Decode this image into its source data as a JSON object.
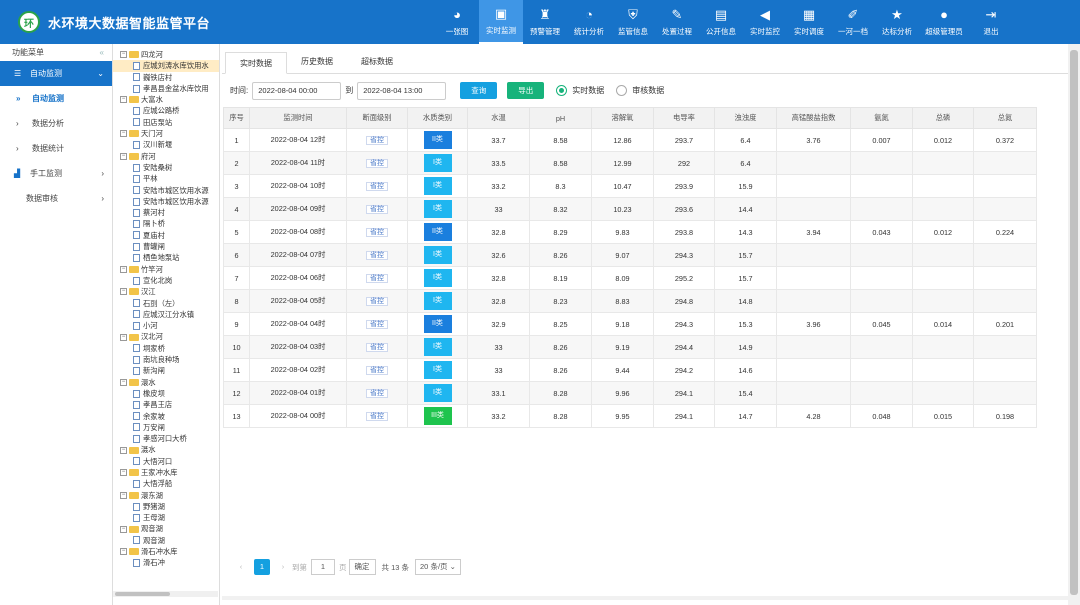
{
  "app": {
    "title": "水环境大数据智能监管平台",
    "logo": "环"
  },
  "nav": [
    {
      "label": "一张图",
      "icon": "globe-icon",
      "glyph": "◕"
    },
    {
      "label": "实时监测",
      "icon": "monitor-icon",
      "glyph": "▣",
      "active": true
    },
    {
      "label": "预警管理",
      "icon": "alarm-icon",
      "glyph": "♜"
    },
    {
      "label": "统计分析",
      "icon": "pie-icon",
      "glyph": "◔"
    },
    {
      "label": "监管信息",
      "icon": "shield-icon",
      "glyph": "⛨"
    },
    {
      "label": "处置过程",
      "icon": "edit-icon",
      "glyph": "✎"
    },
    {
      "label": "公开信息",
      "icon": "document-icon",
      "glyph": "▤"
    },
    {
      "label": "实时监控",
      "icon": "camera-icon",
      "glyph": "◀"
    },
    {
      "label": "实时调度",
      "icon": "schedule-icon",
      "glyph": "▦"
    },
    {
      "label": "一河一档",
      "icon": "archive-icon",
      "glyph": "✐"
    },
    {
      "label": "达标分析",
      "icon": "star-icon",
      "glyph": "★"
    },
    {
      "label": "超级管理员",
      "icon": "user-icon",
      "glyph": "●"
    },
    {
      "label": "退出",
      "icon": "logout-icon",
      "glyph": "⇥"
    }
  ],
  "sidebar": {
    "header": "功能菜单",
    "items": [
      {
        "label": "自动监测",
        "type": "group",
        "icon": "layers-icon",
        "glyph": "☰",
        "arrow": "⌄"
      },
      {
        "label": "自动监测",
        "type": "active",
        "icon": "forward-icon",
        "glyph": "»"
      },
      {
        "label": "数据分析",
        "type": "sub",
        "icon": "chevron-right-icon",
        "glyph": "›"
      },
      {
        "label": "数据统计",
        "type": "sub",
        "icon": "chevron-right-icon",
        "glyph": "›"
      },
      {
        "label": "手工监测",
        "type": "main",
        "icon": "chart-icon",
        "glyph": "▟",
        "arrow": "›"
      },
      {
        "label": "数据审核",
        "type": "main",
        "icon": "",
        "glyph": "",
        "arrow": "›"
      }
    ]
  },
  "tree": [
    {
      "label": "四龙河",
      "level": 0
    },
    {
      "label": "应城刘涛水库饮用水",
      "level": 1,
      "selected": true
    },
    {
      "label": "巍铁店村",
      "level": 1
    },
    {
      "label": "孝昌县金盆水库饮用",
      "level": 1
    },
    {
      "label": "大富水",
      "level": 0
    },
    {
      "label": "应城公路桥",
      "level": 1
    },
    {
      "label": "田店泵站",
      "level": 1
    },
    {
      "label": "天门河",
      "level": 0
    },
    {
      "label": "汉川新堰",
      "level": 1
    },
    {
      "label": "府河",
      "level": 0
    },
    {
      "label": "安陆桑树",
      "level": 1
    },
    {
      "label": "平林",
      "level": 1
    },
    {
      "label": "安陆市城区饮用水源",
      "level": 1
    },
    {
      "label": "安陆市城区饮用水源",
      "level": 1
    },
    {
      "label": "蔡河村",
      "level": 1
    },
    {
      "label": "隔卜桥",
      "level": 1
    },
    {
      "label": "夏庙村",
      "level": 1
    },
    {
      "label": "曹罐闸",
      "level": 1
    },
    {
      "label": "栖鱼地泵站",
      "level": 1
    },
    {
      "label": "竹竿河",
      "level": 0
    },
    {
      "label": "宣化北岗",
      "level": 1
    },
    {
      "label": "汉江",
      "level": 0
    },
    {
      "label": "石剅（左）",
      "level": 1
    },
    {
      "label": "应城汉江分水镇",
      "level": 1
    },
    {
      "label": "小河",
      "level": 1
    },
    {
      "label": "汉北河",
      "level": 0
    },
    {
      "label": "垌家桥",
      "level": 1
    },
    {
      "label": "南坑良种场",
      "level": 1
    },
    {
      "label": "新沟闸",
      "level": 1
    },
    {
      "label": "澴水",
      "level": 0
    },
    {
      "label": "橡皮坝",
      "level": 1
    },
    {
      "label": "孝昌王店",
      "level": 1
    },
    {
      "label": "余家坡",
      "level": 1
    },
    {
      "label": "万安闸",
      "level": 1
    },
    {
      "label": "孝感河口大桥",
      "level": 1
    },
    {
      "label": "滠水",
      "level": 0
    },
    {
      "label": "大悟河口",
      "level": 1
    },
    {
      "label": "王家冲水库",
      "level": 0
    },
    {
      "label": "大悟浮船",
      "level": 1
    },
    {
      "label": "澴东湖",
      "level": 0
    },
    {
      "label": "野猪湖",
      "level": 1
    },
    {
      "label": "王母湖",
      "level": 1
    },
    {
      "label": "观音湖",
      "level": 0
    },
    {
      "label": "观音湖",
      "level": 1
    },
    {
      "label": "滑石冲水库",
      "level": 0
    },
    {
      "label": "滑石冲",
      "level": 1
    }
  ],
  "tabs": [
    {
      "label": "实时数据",
      "active": true
    },
    {
      "label": "历史数据"
    },
    {
      "label": "超标数据"
    }
  ],
  "filter": {
    "time_label": "时间:",
    "start": "2022-08-04 00:00",
    "to_label": "到",
    "end": "2022-08-04 13:00",
    "query_label": "查询",
    "export_label": "导出",
    "radio_realtime": "实时数据",
    "radio_audit": "审核数据"
  },
  "table": {
    "columns": [
      "序号",
      "监测时间",
      "断面级别",
      "水质类别",
      "水温",
      "pH",
      "溶解氧",
      "电导率",
      "浊浊度",
      "高锰酸盐指数",
      "氨氮",
      "总磷",
      "总氮"
    ],
    "rows": [
      [
        "1",
        "2022-08-04 12时",
        "省控",
        "II类",
        "33.7",
        "8.58",
        "12.86",
        "293.7",
        "6.4",
        "3.76",
        "0.007",
        "0.012",
        "0.372"
      ],
      [
        "2",
        "2022-08-04 11时",
        "省控",
        "I类",
        "33.5",
        "8.58",
        "12.99",
        "292",
        "6.4",
        "",
        "",
        "",
        ""
      ],
      [
        "3",
        "2022-08-04 10时",
        "省控",
        "I类",
        "33.2",
        "8.3",
        "10.47",
        "293.9",
        "15.9",
        "",
        "",
        "",
        ""
      ],
      [
        "4",
        "2022-08-04 09时",
        "省控",
        "I类",
        "33",
        "8.32",
        "10.23",
        "293.6",
        "14.4",
        "",
        "",
        "",
        ""
      ],
      [
        "5",
        "2022-08-04 08时",
        "省控",
        "II类",
        "32.8",
        "8.29",
        "9.83",
        "293.8",
        "14.3",
        "3.94",
        "0.043",
        "0.012",
        "0.224"
      ],
      [
        "6",
        "2022-08-04 07时",
        "省控",
        "I类",
        "32.6",
        "8.26",
        "9.07",
        "294.3",
        "15.7",
        "",
        "",
        "",
        ""
      ],
      [
        "7",
        "2022-08-04 06时",
        "省控",
        "I类",
        "32.8",
        "8.19",
        "8.09",
        "295.2",
        "15.7",
        "",
        "",
        "",
        ""
      ],
      [
        "8",
        "2022-08-04 05时",
        "省控",
        "I类",
        "32.8",
        "8.23",
        "8.83",
        "294.8",
        "14.8",
        "",
        "",
        "",
        ""
      ],
      [
        "9",
        "2022-08-04 04时",
        "省控",
        "II类",
        "32.9",
        "8.25",
        "9.18",
        "294.3",
        "15.3",
        "3.96",
        "0.045",
        "0.014",
        "0.201"
      ],
      [
        "10",
        "2022-08-04 03时",
        "省控",
        "I类",
        "33",
        "8.26",
        "9.19",
        "294.4",
        "14.9",
        "",
        "",
        "",
        ""
      ],
      [
        "11",
        "2022-08-04 02时",
        "省控",
        "I类",
        "33",
        "8.26",
        "9.44",
        "294.2",
        "14.6",
        "",
        "",
        "",
        ""
      ],
      [
        "12",
        "2022-08-04 01时",
        "省控",
        "I类",
        "33.1",
        "8.28",
        "9.96",
        "294.1",
        "15.4",
        "",
        "",
        "",
        ""
      ],
      [
        "13",
        "2022-08-04 00时",
        "省控",
        "III类",
        "33.2",
        "8.28",
        "9.95",
        "294.1",
        "14.7",
        "4.28",
        "0.048",
        "0.015",
        "0.198"
      ]
    ]
  },
  "badge_colors": {
    "I类": "#1fb6f0",
    "II类": "#1a7fde",
    "III类": "#1ec44e"
  },
  "pager": {
    "prev": "‹",
    "current": "1",
    "next": "›",
    "goto_label": "到第",
    "page_input": "1",
    "page_unit": "页",
    "ok_label": "确定",
    "total": "共 13 条",
    "page_size": "20 条/页 ⌄"
  }
}
